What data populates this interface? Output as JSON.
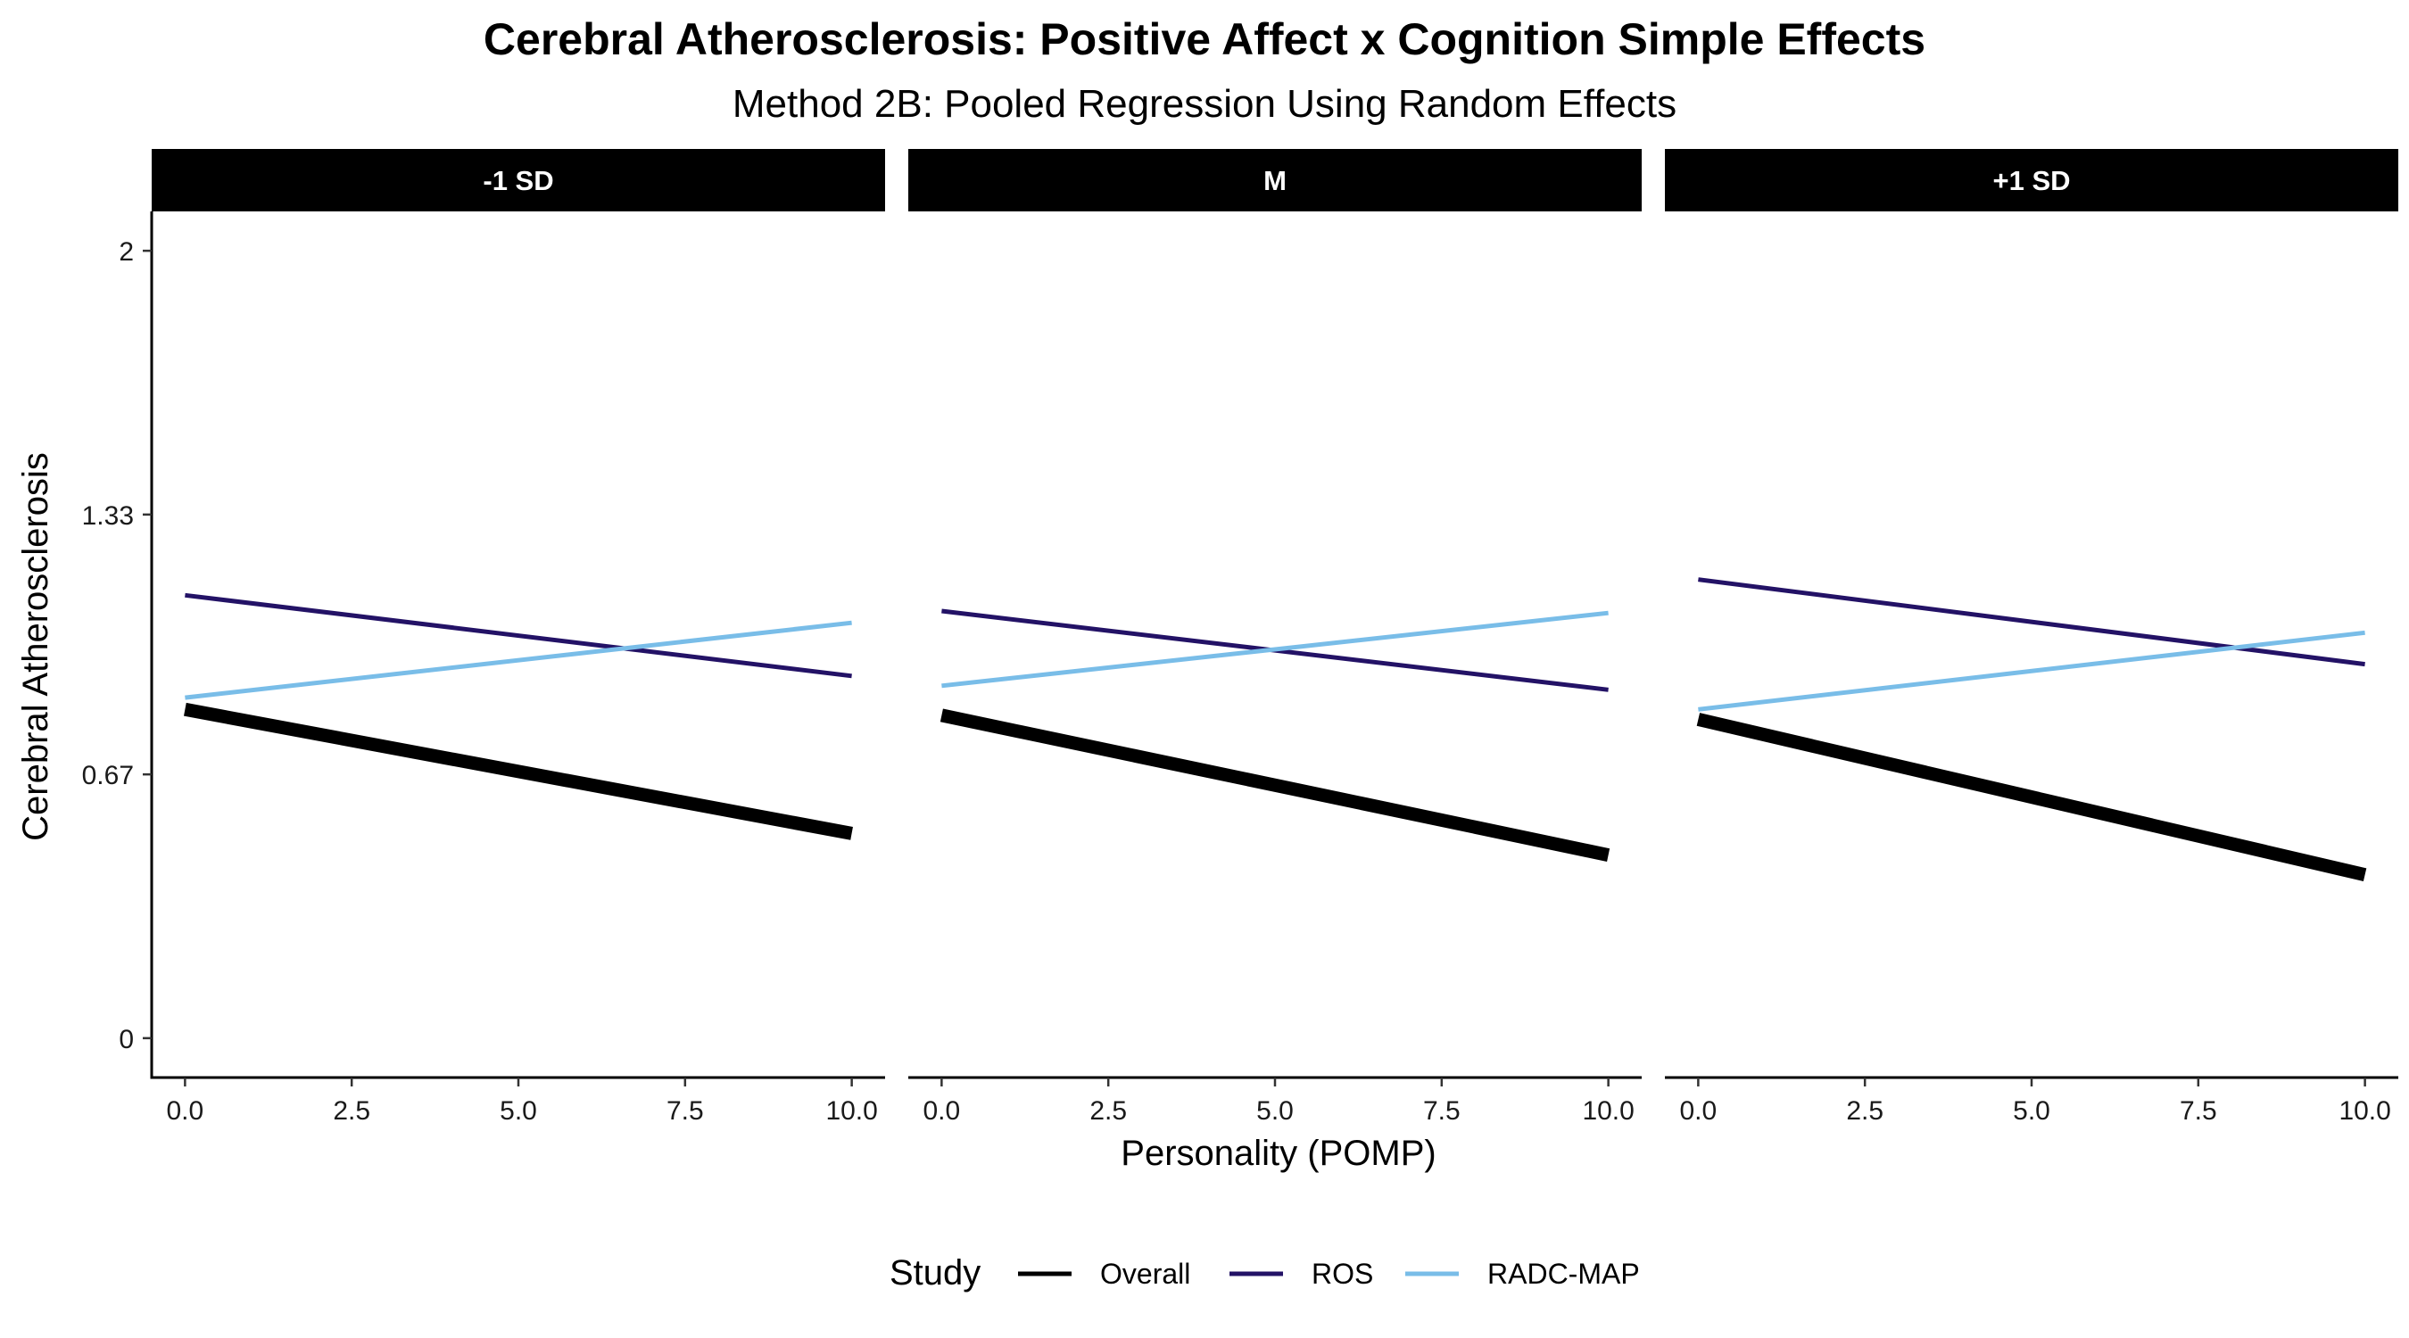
{
  "chart_data": {
    "type": "line",
    "title": "Cerebral Atherosclerosis: Positive Affect x Cognition Simple Effects",
    "subtitle": "Method 2B: Pooled Regression Using Random Effects",
    "xlabel": "Personality (POMP)",
    "ylabel": "Cerebral Atherosclerosis",
    "xlim": [
      -0.5,
      10.5
    ],
    "ylim": [
      -0.1,
      2.1
    ],
    "x_ticks": [
      0,
      2.5,
      5,
      7.5,
      10
    ],
    "x_tick_labels": [
      "0.0",
      "2.5",
      "5.0",
      "7.5",
      "10.0"
    ],
    "y_ticks": [
      0,
      0.67,
      1.33,
      2
    ],
    "y_tick_labels": [
      "0",
      "0.67",
      "1.33",
      "2"
    ],
    "grid": false,
    "legend": {
      "title": "Study",
      "position": "bottom",
      "entries": [
        {
          "name": "Overall",
          "color": "#000000"
        },
        {
          "name": "ROS",
          "color": "#231266"
        },
        {
          "name": "RADC-MAP",
          "color": "#79bde8"
        }
      ]
    },
    "facets": [
      {
        "label": "-1 SD",
        "series": [
          {
            "name": "Overall",
            "color": "#000000",
            "x": [
              0,
              10
            ],
            "y": [
              0.835,
              0.52
            ]
          },
          {
            "name": "ROS",
            "color": "#231266",
            "x": [
              0,
              10
            ],
            "y": [
              1.125,
              0.92
            ]
          },
          {
            "name": "RADC-MAP",
            "color": "#79bde8",
            "x": [
              0,
              10
            ],
            "y": [
              0.865,
              1.055
            ]
          }
        ]
      },
      {
        "label": "M",
        "series": [
          {
            "name": "Overall",
            "color": "#000000",
            "x": [
              0,
              10
            ],
            "y": [
              0.82,
              0.465
            ]
          },
          {
            "name": "ROS",
            "color": "#231266",
            "x": [
              0,
              10
            ],
            "y": [
              1.085,
              0.885
            ]
          },
          {
            "name": "RADC-MAP",
            "color": "#79bde8",
            "x": [
              0,
              10
            ],
            "y": [
              0.895,
              1.08
            ]
          }
        ]
      },
      {
        "label": "+1 SD",
        "series": [
          {
            "name": "Overall",
            "color": "#000000",
            "x": [
              0,
              10
            ],
            "y": [
              0.81,
              0.415
            ]
          },
          {
            "name": "ROS",
            "color": "#231266",
            "x": [
              0,
              10
            ],
            "y": [
              1.165,
              0.95
            ]
          },
          {
            "name": "RADC-MAP",
            "color": "#79bde8",
            "x": [
              0,
              10
            ],
            "y": [
              0.835,
              1.03
            ]
          }
        ]
      }
    ]
  }
}
